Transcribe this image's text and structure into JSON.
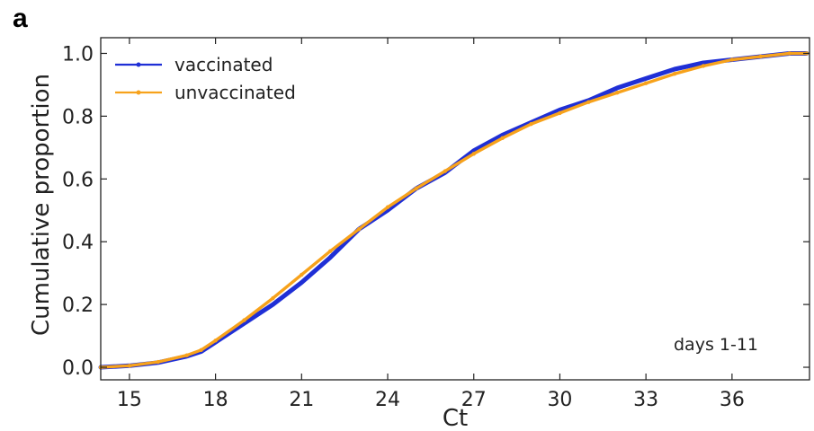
{
  "panel_label": "a",
  "chart_data": {
    "type": "line",
    "title": "",
    "xlabel": "Ct",
    "ylabel": "Cumulative proportion",
    "xlim": [
      14,
      38.7
    ],
    "ylim": [
      -0.04,
      1.05
    ],
    "xticks": [
      15,
      18,
      21,
      24,
      27,
      30,
      33,
      36
    ],
    "yticks": [
      0.0,
      0.2,
      0.4,
      0.6,
      0.8,
      1.0
    ],
    "ytick_labels": [
      "0.0",
      "0.2",
      "0.4",
      "0.6",
      "0.8",
      "1.0"
    ],
    "grid": false,
    "legend_position": "top-left",
    "annotation": "days 1-11",
    "series": [
      {
        "name": "vaccinated",
        "color": "#1f2fd6",
        "x": [
          14,
          15,
          16,
          17,
          17.5,
          18,
          19,
          20,
          21,
          22,
          23,
          24,
          25,
          26,
          27,
          28,
          29,
          30,
          31,
          32,
          33,
          34,
          35,
          36,
          37,
          38,
          38.6
        ],
        "y": [
          0.0,
          0.005,
          0.015,
          0.035,
          0.05,
          0.08,
          0.14,
          0.2,
          0.27,
          0.35,
          0.44,
          0.5,
          0.57,
          0.62,
          0.69,
          0.74,
          0.78,
          0.82,
          0.85,
          0.89,
          0.92,
          0.95,
          0.97,
          0.98,
          0.99,
          1.0,
          1.0
        ]
      },
      {
        "name": "unvaccinated",
        "color": "#f7a21b",
        "x": [
          14,
          15,
          16,
          17,
          17.5,
          18,
          19,
          20,
          21,
          22,
          23,
          24,
          25,
          26,
          27,
          28,
          29,
          30,
          31,
          32,
          33,
          34,
          35,
          36,
          37,
          38,
          38.6
        ],
        "y": [
          0.0,
          0.005,
          0.017,
          0.038,
          0.055,
          0.085,
          0.15,
          0.22,
          0.295,
          0.37,
          0.44,
          0.51,
          0.57,
          0.625,
          0.68,
          0.73,
          0.775,
          0.81,
          0.845,
          0.875,
          0.905,
          0.935,
          0.96,
          0.98,
          0.99,
          1.0,
          1.0
        ]
      }
    ]
  }
}
